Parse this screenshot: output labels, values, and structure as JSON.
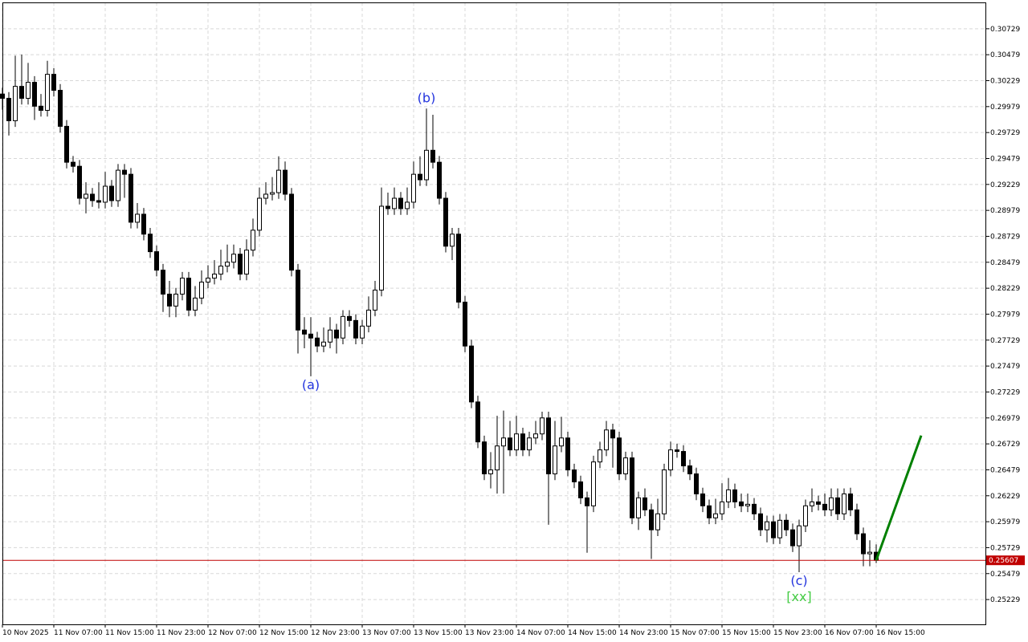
{
  "chart_data": {
    "type": "candlestick",
    "categories": [
      "10 Nov 2025",
      null,
      null,
      null,
      null,
      null,
      null,
      null,
      "11 Nov 07:00",
      null,
      null,
      null,
      null,
      null,
      null,
      null,
      "11 Nov 15:00",
      null,
      null,
      null,
      null,
      null,
      null,
      null,
      "11 Nov 23:00",
      null,
      null,
      null,
      null,
      null,
      null,
      null,
      "12 Nov 07:00",
      null,
      null,
      null,
      null,
      null,
      null,
      null,
      "12 Nov 15:00",
      null,
      null,
      null,
      null,
      null,
      null,
      null,
      "12 Nov 23:00",
      null,
      null,
      null,
      null,
      null,
      null,
      null,
      "13 Nov 07:00",
      null,
      null,
      null,
      null,
      null,
      null,
      null,
      "13 Nov 15:00",
      null,
      null,
      null,
      null,
      null,
      null,
      null,
      "13 Nov 23:00",
      null,
      null,
      null,
      null,
      null,
      null,
      null,
      "14 Nov 07:00",
      null,
      null,
      null,
      null,
      null,
      null,
      null,
      "14 Nov 15:00",
      null,
      null,
      null,
      null,
      null,
      null,
      null,
      "14 Nov 23:00",
      null,
      null,
      null,
      null,
      null,
      null,
      null,
      "15 Nov 07:00",
      null,
      null,
      null,
      null,
      null,
      null,
      null,
      "15 Nov 15:00",
      null,
      null,
      null,
      null,
      null,
      null,
      null,
      "15 Nov 23:00",
      null,
      null,
      null,
      null,
      null,
      null,
      null,
      "16 Nov 07:00",
      null,
      null,
      null,
      null,
      null,
      null,
      null,
      "16 Nov 15:00"
    ],
    "open": [
      0.301,
      0.30059,
      0.29843,
      0.30174,
      0.30059,
      0.30213,
      0.29983,
      0.29943,
      0.3029,
      0.30136,
      0.29789,
      0.29443,
      0.29404,
      0.29096,
      0.29135,
      0.29073,
      0.29058,
      0.29212,
      0.29073,
      0.29366,
      0.29327,
      0.28865,
      0.28942,
      0.2875,
      0.28581,
      0.28403,
      0.28172,
      0.28057,
      0.28172,
      0.28326,
      0.28018,
      0.28134,
      0.28288,
      0.28326,
      0.28365,
      0.28442,
      0.2848,
      0.28557,
      0.28365,
      0.28596,
      0.28788,
      0.29096,
      0.29135,
      0.2915,
      0.29366,
      0.29135,
      0.28403,
      0.27826,
      0.27787,
      0.27749,
      0.27672,
      0.2771,
      0.27826,
      0.27749,
      0.27957,
      0.27918,
      0.27749,
      0.27864,
      0.28018,
      0.28211,
      0.29019,
      0.28996,
      0.29096,
      0.28996,
      0.29058,
      0.29327,
      0.29274,
      0.29558,
      0.29443,
      0.29096,
      0.28634,
      0.2875,
      0.28095,
      0.27672,
      0.27133,
      0.26748,
      0.2644,
      0.26478,
      0.26709,
      0.26786,
      0.26671,
      0.26825,
      0.26671,
      0.26786,
      0.26825,
      0.26979,
      0.2644,
      0.26709,
      0.26786,
      0.26478,
      0.26363,
      0.26209,
      0.26132,
      0.26555,
      0.26671,
      0.26863,
      0.26786,
      0.2644,
      0.26594,
      0.26016,
      0.26209,
      0.26093,
      0.25901,
      0.26055,
      0.26478,
      0.26671,
      0.26656,
      0.26517,
      0.2644,
      0.26247,
      0.26132,
      0.26016,
      0.26055,
      0.2617,
      0.26286,
      0.2617,
      0.26132,
      0.26147,
      0.26055,
      0.25901,
      0.25978,
      0.25824,
      0.25993,
      0.25901,
      0.25747,
      0.25939,
      0.26132,
      0.2617,
      0.26147,
      0.26093,
      0.26209,
      0.26055,
      0.26247,
      0.26093,
      0.25863,
      0.2567,
      0.25685
    ],
    "high": [
      0.3016,
      0.30119,
      0.3047,
      0.3048,
      0.304,
      0.30273,
      0.301,
      0.3042,
      0.3035,
      0.30196,
      0.29849,
      0.29503,
      0.29464,
      0.2925,
      0.29195,
      0.2925,
      0.2935,
      0.29272,
      0.29426,
      0.29426,
      0.29387,
      0.2905,
      0.29002,
      0.2881,
      0.28641,
      0.28463,
      0.283,
      0.28232,
      0.28386,
      0.28386,
      0.2825,
      0.284,
      0.2845,
      0.285,
      0.286,
      0.2865,
      0.2865,
      0.28617,
      0.287,
      0.289,
      0.292,
      0.2925,
      0.293,
      0.295,
      0.2945,
      0.29195,
      0.28463,
      0.2795,
      0.2795,
      0.27809,
      0.2785,
      0.2795,
      0.27886,
      0.28017,
      0.28017,
      0.27978,
      0.27924,
      0.2815,
      0.283,
      0.292,
      0.2915,
      0.292,
      0.29156,
      0.292,
      0.2945,
      0.295,
      0.2996,
      0.299,
      0.29503,
      0.29156,
      0.2881,
      0.2881,
      0.28155,
      0.27732,
      0.27193,
      0.26808,
      0.2665,
      0.27,
      0.2705,
      0.2695,
      0.27,
      0.26885,
      0.26846,
      0.2695,
      0.27039,
      0.27039,
      0.2695,
      0.2699,
      0.26846,
      0.26538,
      0.26423,
      0.26269,
      0.26615,
      0.2675,
      0.2695,
      0.26923,
      0.26846,
      0.26654,
      0.26654,
      0.26269,
      0.263,
      0.26153,
      0.262,
      0.26538,
      0.2675,
      0.26731,
      0.26716,
      0.26577,
      0.265,
      0.26307,
      0.26192,
      0.262,
      0.2635,
      0.264,
      0.26346,
      0.2625,
      0.2625,
      0.26207,
      0.26115,
      0.26038,
      0.26038,
      0.26053,
      0.26053,
      0.25961,
      0.25999,
      0.26192,
      0.263,
      0.2623,
      0.2625,
      0.263,
      0.263,
      0.263,
      0.26307,
      0.26153,
      0.25923,
      0.258,
      0.2576
    ],
    "low": [
      0.2995,
      0.297,
      0.29783,
      0.29999,
      0.29999,
      0.2985,
      0.29883,
      0.29883,
      0.30076,
      0.29729,
      0.29383,
      0.29344,
      0.29036,
      0.2895,
      0.29013,
      0.28998,
      0.28998,
      0.29013,
      0.29013,
      0.291,
      0.28805,
      0.28805,
      0.2869,
      0.28521,
      0.28343,
      0.28,
      0.2795,
      0.2795,
      0.28112,
      0.27958,
      0.27958,
      0.28074,
      0.28228,
      0.28266,
      0.28305,
      0.28382,
      0.2842,
      0.28305,
      0.28305,
      0.28536,
      0.28728,
      0.29036,
      0.29075,
      0.2909,
      0.29075,
      0.28343,
      0.276,
      0.2765,
      0.2738,
      0.27612,
      0.27612,
      0.2765,
      0.276,
      0.27689,
      0.27858,
      0.27689,
      0.27689,
      0.27804,
      0.27958,
      0.28151,
      0.28936,
      0.28936,
      0.28936,
      0.28936,
      0.28998,
      0.29214,
      0.29214,
      0.29383,
      0.29036,
      0.28574,
      0.285,
      0.28035,
      0.27612,
      0.27073,
      0.26688,
      0.2638,
      0.263,
      0.2625,
      0.2625,
      0.26611,
      0.26611,
      0.26611,
      0.26611,
      0.26726,
      0.26765,
      0.2595,
      0.2638,
      0.26649,
      0.26418,
      0.26303,
      0.26149,
      0.2568,
      0.26072,
      0.26495,
      0.26611,
      0.265,
      0.2638,
      0.2638,
      0.25956,
      0.259,
      0.26033,
      0.2562,
      0.25841,
      0.25995,
      0.26418,
      0.26596,
      0.26457,
      0.2638,
      0.26187,
      0.26072,
      0.25956,
      0.25956,
      0.25995,
      0.2611,
      0.2611,
      0.26072,
      0.26072,
      0.25995,
      0.25841,
      0.2578,
      0.25764,
      0.25764,
      0.25841,
      0.25687,
      0.25493,
      0.25879,
      0.26072,
      0.26087,
      0.26033,
      0.26033,
      0.25995,
      0.25995,
      0.26033,
      0.25803,
      0.2555,
      0.2555,
      0.2558
    ],
    "close": [
      0.30059,
      0.29843,
      0.30174,
      0.30059,
      0.30213,
      0.29983,
      0.29943,
      0.3029,
      0.30136,
      0.29789,
      0.29443,
      0.29404,
      0.29096,
      0.29135,
      0.29073,
      0.29058,
      0.29212,
      0.29073,
      0.29366,
      0.29327,
      0.28865,
      0.28942,
      0.2875,
      0.28581,
      0.28403,
      0.28172,
      0.28057,
      0.28172,
      0.28326,
      0.28018,
      0.28134,
      0.28288,
      0.28326,
      0.28365,
      0.28442,
      0.2848,
      0.28557,
      0.28365,
      0.28596,
      0.28788,
      0.29096,
      0.29135,
      0.2915,
      0.29366,
      0.29135,
      0.28403,
      0.27826,
      0.27787,
      0.27749,
      0.27672,
      0.2771,
      0.27826,
      0.27749,
      0.27957,
      0.27918,
      0.27749,
      0.27864,
      0.28018,
      0.28211,
      0.29019,
      0.28996,
      0.29096,
      0.28996,
      0.29058,
      0.29327,
      0.29274,
      0.29558,
      0.29443,
      0.29096,
      0.28634,
      0.2875,
      0.28095,
      0.27672,
      0.27133,
      0.26748,
      0.2644,
      0.26478,
      0.26709,
      0.26786,
      0.26671,
      0.26825,
      0.26671,
      0.26786,
      0.26825,
      0.26979,
      0.2644,
      0.26709,
      0.26786,
      0.26478,
      0.26363,
      0.26209,
      0.26132,
      0.26555,
      0.26671,
      0.26863,
      0.26786,
      0.2644,
      0.26594,
      0.26016,
      0.26209,
      0.26093,
      0.25901,
      0.26055,
      0.26478,
      0.26671,
      0.26656,
      0.26517,
      0.2644,
      0.26247,
      0.26132,
      0.26016,
      0.26055,
      0.2617,
      0.26286,
      0.2617,
      0.26132,
      0.26147,
      0.26055,
      0.25901,
      0.25978,
      0.25824,
      0.25993,
      0.25901,
      0.25747,
      0.25939,
      0.26132,
      0.2617,
      0.26147,
      0.26093,
      0.26209,
      0.26055,
      0.26247,
      0.26093,
      0.25863,
      0.2567,
      0.25685,
      0.25607
    ],
    "ylim": [
      0.2499,
      0.30983
    ],
    "yticks": [
      0.30729,
      0.30479,
      0.30229,
      0.29979,
      0.29729,
      0.29479,
      0.29229,
      0.28979,
      0.28729,
      0.28479,
      0.28229,
      0.27979,
      0.27729,
      0.27479,
      0.27229,
      0.26979,
      0.26729,
      0.26479,
      0.26229,
      0.25979,
      0.25729,
      0.25479,
      0.25229
    ],
    "grid": true,
    "current_price": 0.25607,
    "current_price_color": "#c00000",
    "forecast": {
      "color": "#008000",
      "x": [
        136,
        143
      ],
      "values": [
        0.25607,
        0.26809
      ]
    },
    "annotations": [
      {
        "text": "(a)",
        "x": 48,
        "position": "below",
        "color": "#2233dd"
      },
      {
        "text": "(b)",
        "x": 66,
        "position": "above",
        "color": "#2233dd"
      },
      {
        "text": "(c)",
        "x": 124,
        "position": "below",
        "color": "#2233dd"
      },
      {
        "text": "[xx]",
        "x": 124,
        "position": "below",
        "color": "#44cc44"
      }
    ]
  }
}
